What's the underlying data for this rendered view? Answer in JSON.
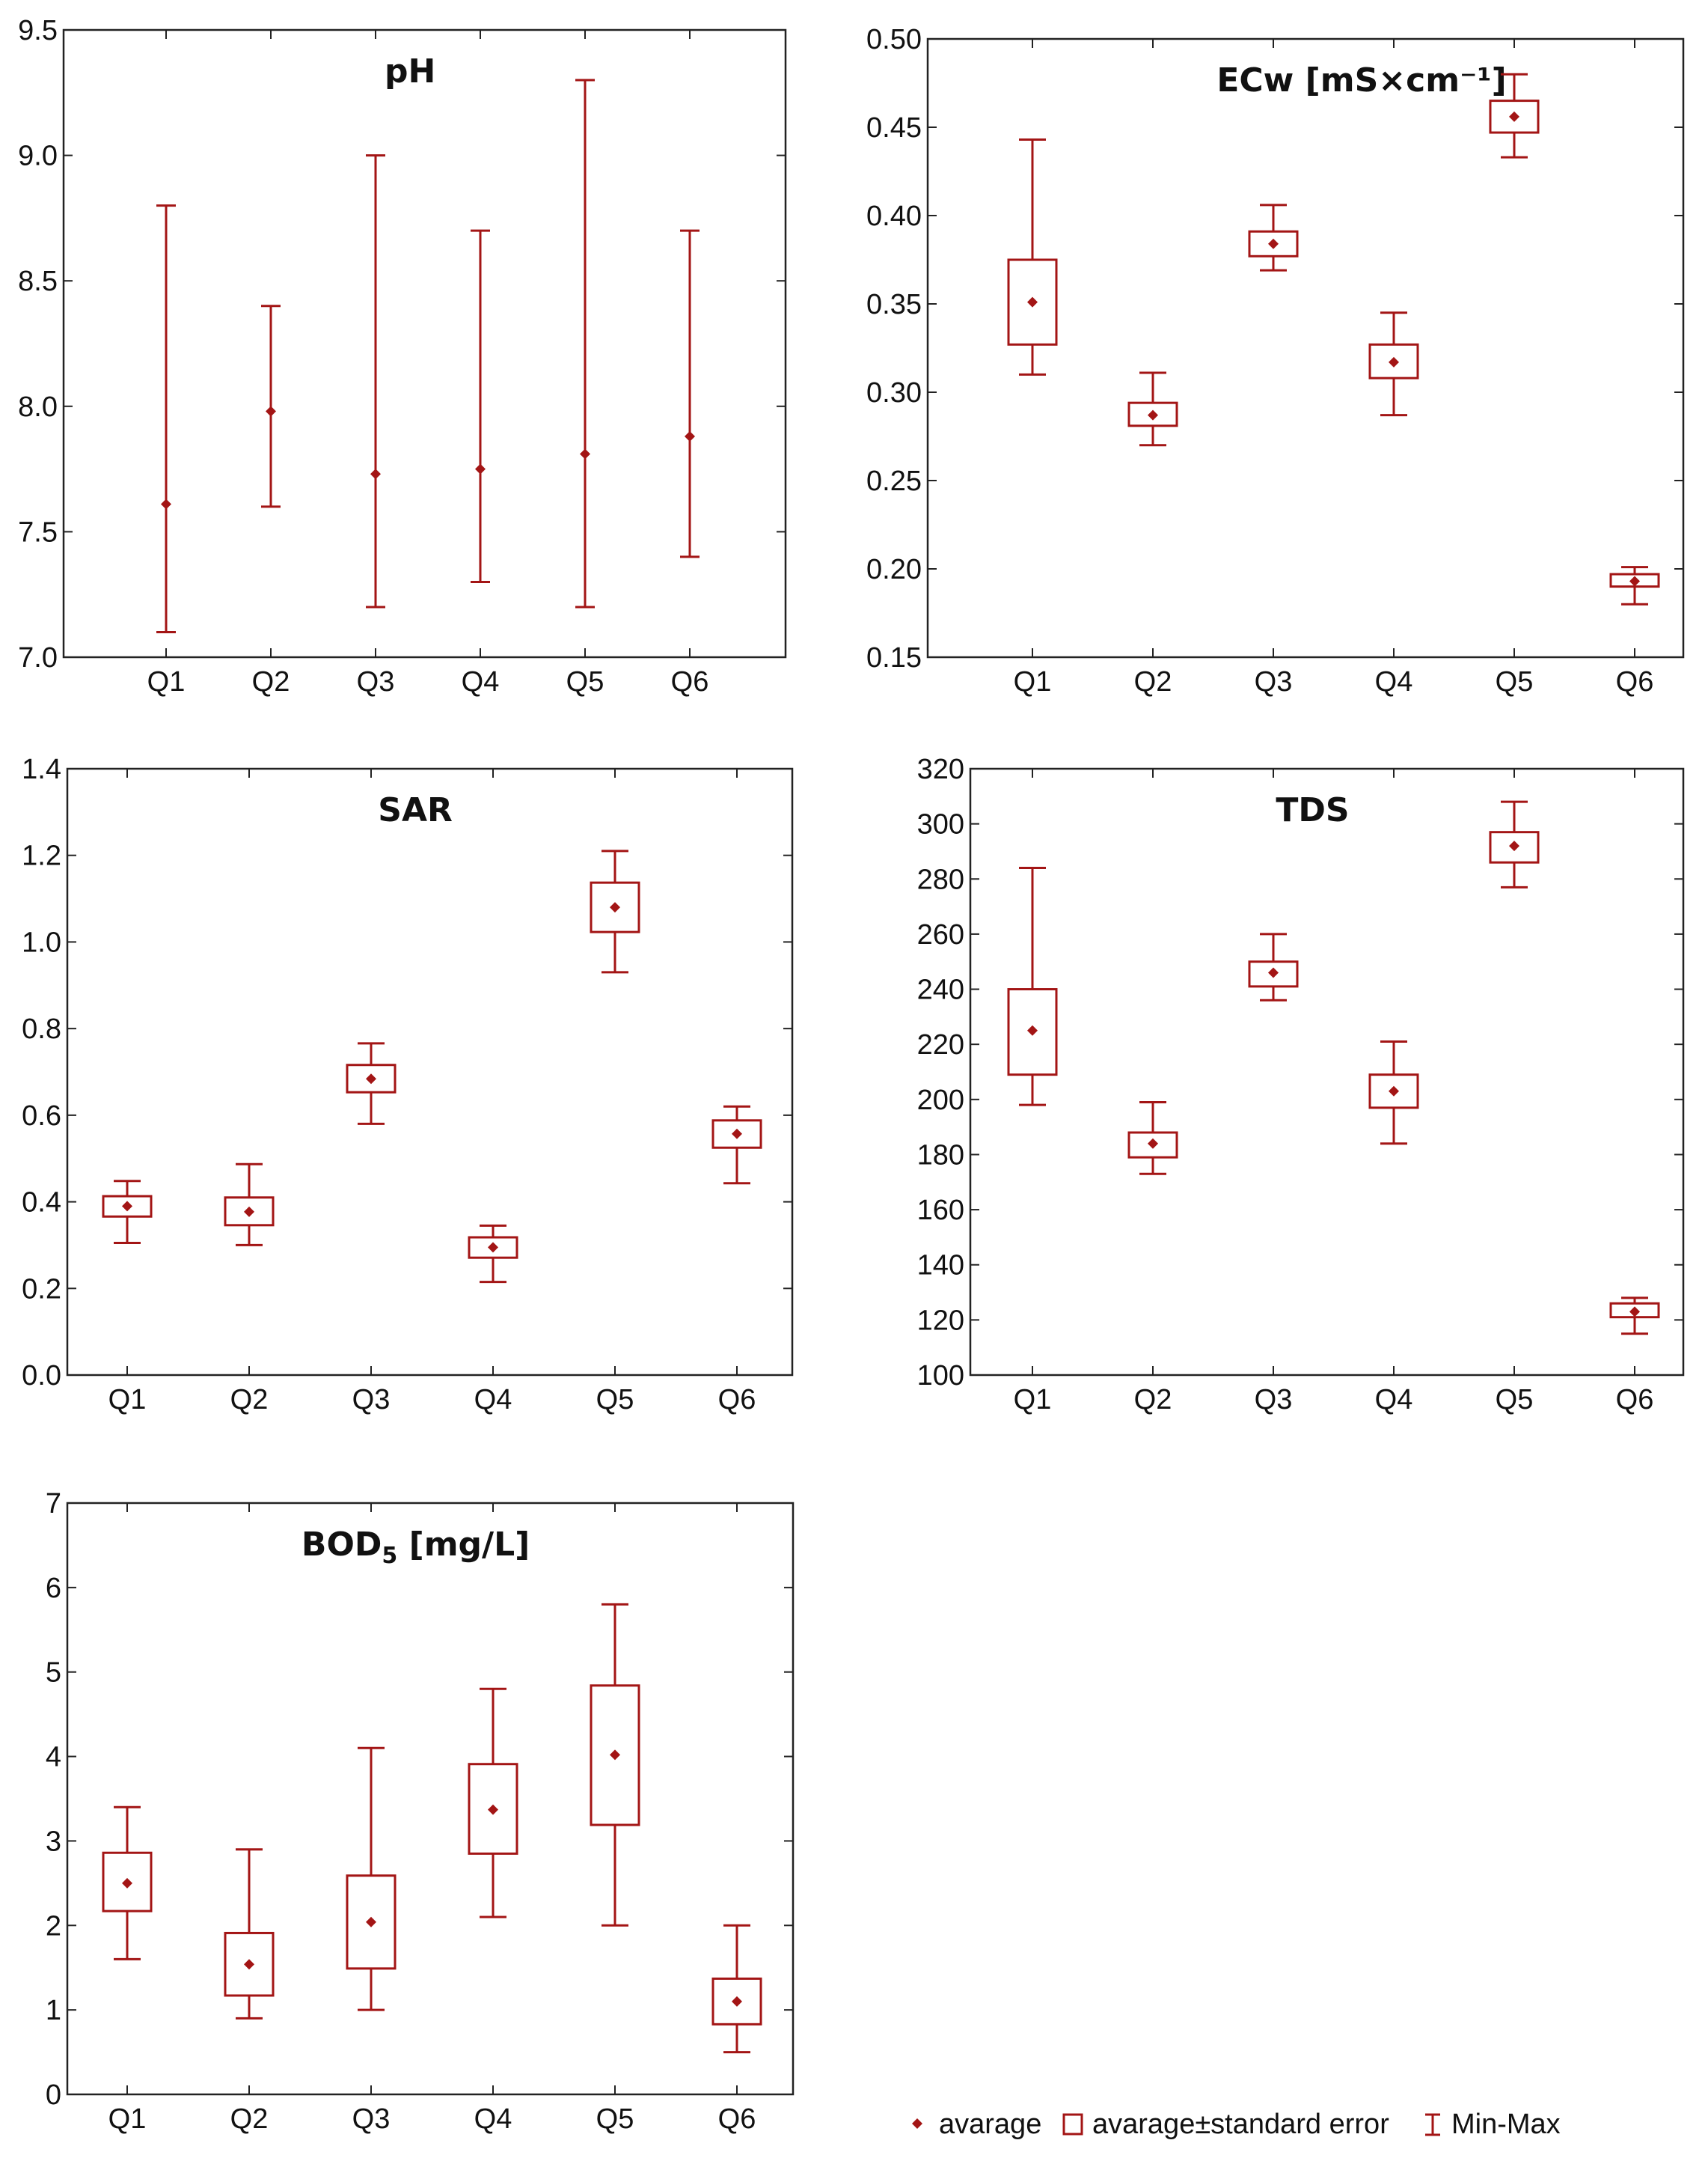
{
  "colors": {
    "series": "#a31515",
    "axis": "#222222",
    "text": "#111111"
  },
  "legend": {
    "average": "avarage",
    "stderr": "avarage±standard error",
    "minmax": "Min-Max"
  },
  "chart_data": [
    {
      "id": "ph",
      "type": "box",
      "title": "pH",
      "title_sub": "",
      "title_tail": "",
      "categories": [
        "Q1",
        "Q2",
        "Q3",
        "Q4",
        "Q5",
        "Q6"
      ],
      "ylim": [
        7.0,
        9.5
      ],
      "yticks": [
        "7.0",
        "7.5",
        "8.0",
        "8.5",
        "9.0",
        "9.5"
      ],
      "mean": [
        7.61,
        7.98,
        7.73,
        7.75,
        7.81,
        7.88
      ],
      "se_low": [
        null,
        null,
        null,
        null,
        null,
        null
      ],
      "se_high": [
        null,
        null,
        null,
        null,
        null,
        null
      ],
      "min": [
        7.1,
        7.6,
        7.2,
        7.3,
        7.2,
        7.4
      ],
      "max": [
        8.8,
        8.4,
        9.0,
        8.7,
        9.3,
        8.7
      ]
    },
    {
      "id": "ecw",
      "type": "box",
      "title": "ECw [mS×cm⁻¹]",
      "title_sub": "",
      "title_tail": "",
      "categories": [
        "Q1",
        "Q2",
        "Q3",
        "Q4",
        "Q5",
        "Q6"
      ],
      "ylim": [
        0.15,
        0.5
      ],
      "yticks": [
        "0.15",
        "0.20",
        "0.25",
        "0.30",
        "0.35",
        "0.40",
        "0.45",
        "0.50"
      ],
      "mean": [
        0.351,
        0.287,
        0.384,
        0.317,
        0.456,
        0.193
      ],
      "se_low": [
        0.327,
        0.281,
        0.377,
        0.308,
        0.447,
        0.19
      ],
      "se_high": [
        0.375,
        0.294,
        0.391,
        0.327,
        0.465,
        0.197
      ],
      "min": [
        0.31,
        0.27,
        0.369,
        0.287,
        0.433,
        0.18
      ],
      "max": [
        0.443,
        0.311,
        0.406,
        0.345,
        0.48,
        0.201
      ]
    },
    {
      "id": "sar",
      "type": "box",
      "title": "SAR",
      "title_sub": "",
      "title_tail": "",
      "categories": [
        "Q1",
        "Q2",
        "Q3",
        "Q4",
        "Q5",
        "Q6"
      ],
      "ylim": [
        0.0,
        1.4
      ],
      "yticks": [
        "0.0",
        "0.2",
        "0.4",
        "0.6",
        "0.8",
        "1.0",
        "1.2",
        "1.4"
      ],
      "mean": [
        0.39,
        0.377,
        0.684,
        0.295,
        1.08,
        0.557
      ],
      "se_low": [
        0.366,
        0.346,
        0.653,
        0.271,
        1.023,
        0.525
      ],
      "se_high": [
        0.413,
        0.41,
        0.716,
        0.318,
        1.137,
        0.588
      ],
      "min": [
        0.305,
        0.3,
        0.58,
        0.215,
        0.93,
        0.443
      ],
      "max": [
        0.448,
        0.487,
        0.766,
        0.345,
        1.21,
        0.62
      ]
    },
    {
      "id": "tds",
      "type": "box",
      "title": "TDS",
      "title_sub": "",
      "title_tail": "",
      "categories": [
        "Q1",
        "Q2",
        "Q3",
        "Q4",
        "Q5",
        "Q6"
      ],
      "ylim": [
        100,
        320
      ],
      "yticks": [
        "100",
        "120",
        "140",
        "160",
        "180",
        "200",
        "220",
        "240",
        "260",
        "280",
        "300",
        "320"
      ],
      "mean": [
        225,
        184,
        246,
        203,
        292,
        123
      ],
      "se_low": [
        209,
        179,
        241,
        197,
        286,
        121
      ],
      "se_high": [
        240,
        188,
        250,
        209,
        297,
        126
      ],
      "min": [
        198,
        173,
        236,
        184,
        277,
        115
      ],
      "max": [
        284,
        199,
        260,
        221,
        308,
        128
      ]
    },
    {
      "id": "bod5",
      "type": "box",
      "title": "BOD",
      "title_sub": "5",
      "title_tail": " [mg/L]",
      "categories": [
        "Q1",
        "Q2",
        "Q3",
        "Q4",
        "Q5",
        "Q6"
      ],
      "ylim": [
        0,
        7
      ],
      "yticks": [
        "0",
        "1",
        "2",
        "3",
        "4",
        "5",
        "6",
        "7"
      ],
      "mean": [
        2.5,
        1.54,
        2.04,
        3.37,
        4.02,
        1.1
      ],
      "se_low": [
        2.17,
        1.17,
        1.49,
        2.85,
        3.19,
        0.83
      ],
      "se_high": [
        2.86,
        1.91,
        2.59,
        3.91,
        4.84,
        1.37
      ],
      "min": [
        1.6,
        0.9,
        1.0,
        2.1,
        2.0,
        0.5
      ],
      "max": [
        3.4,
        2.9,
        4.1,
        4.8,
        5.8,
        2.0
      ]
    }
  ]
}
